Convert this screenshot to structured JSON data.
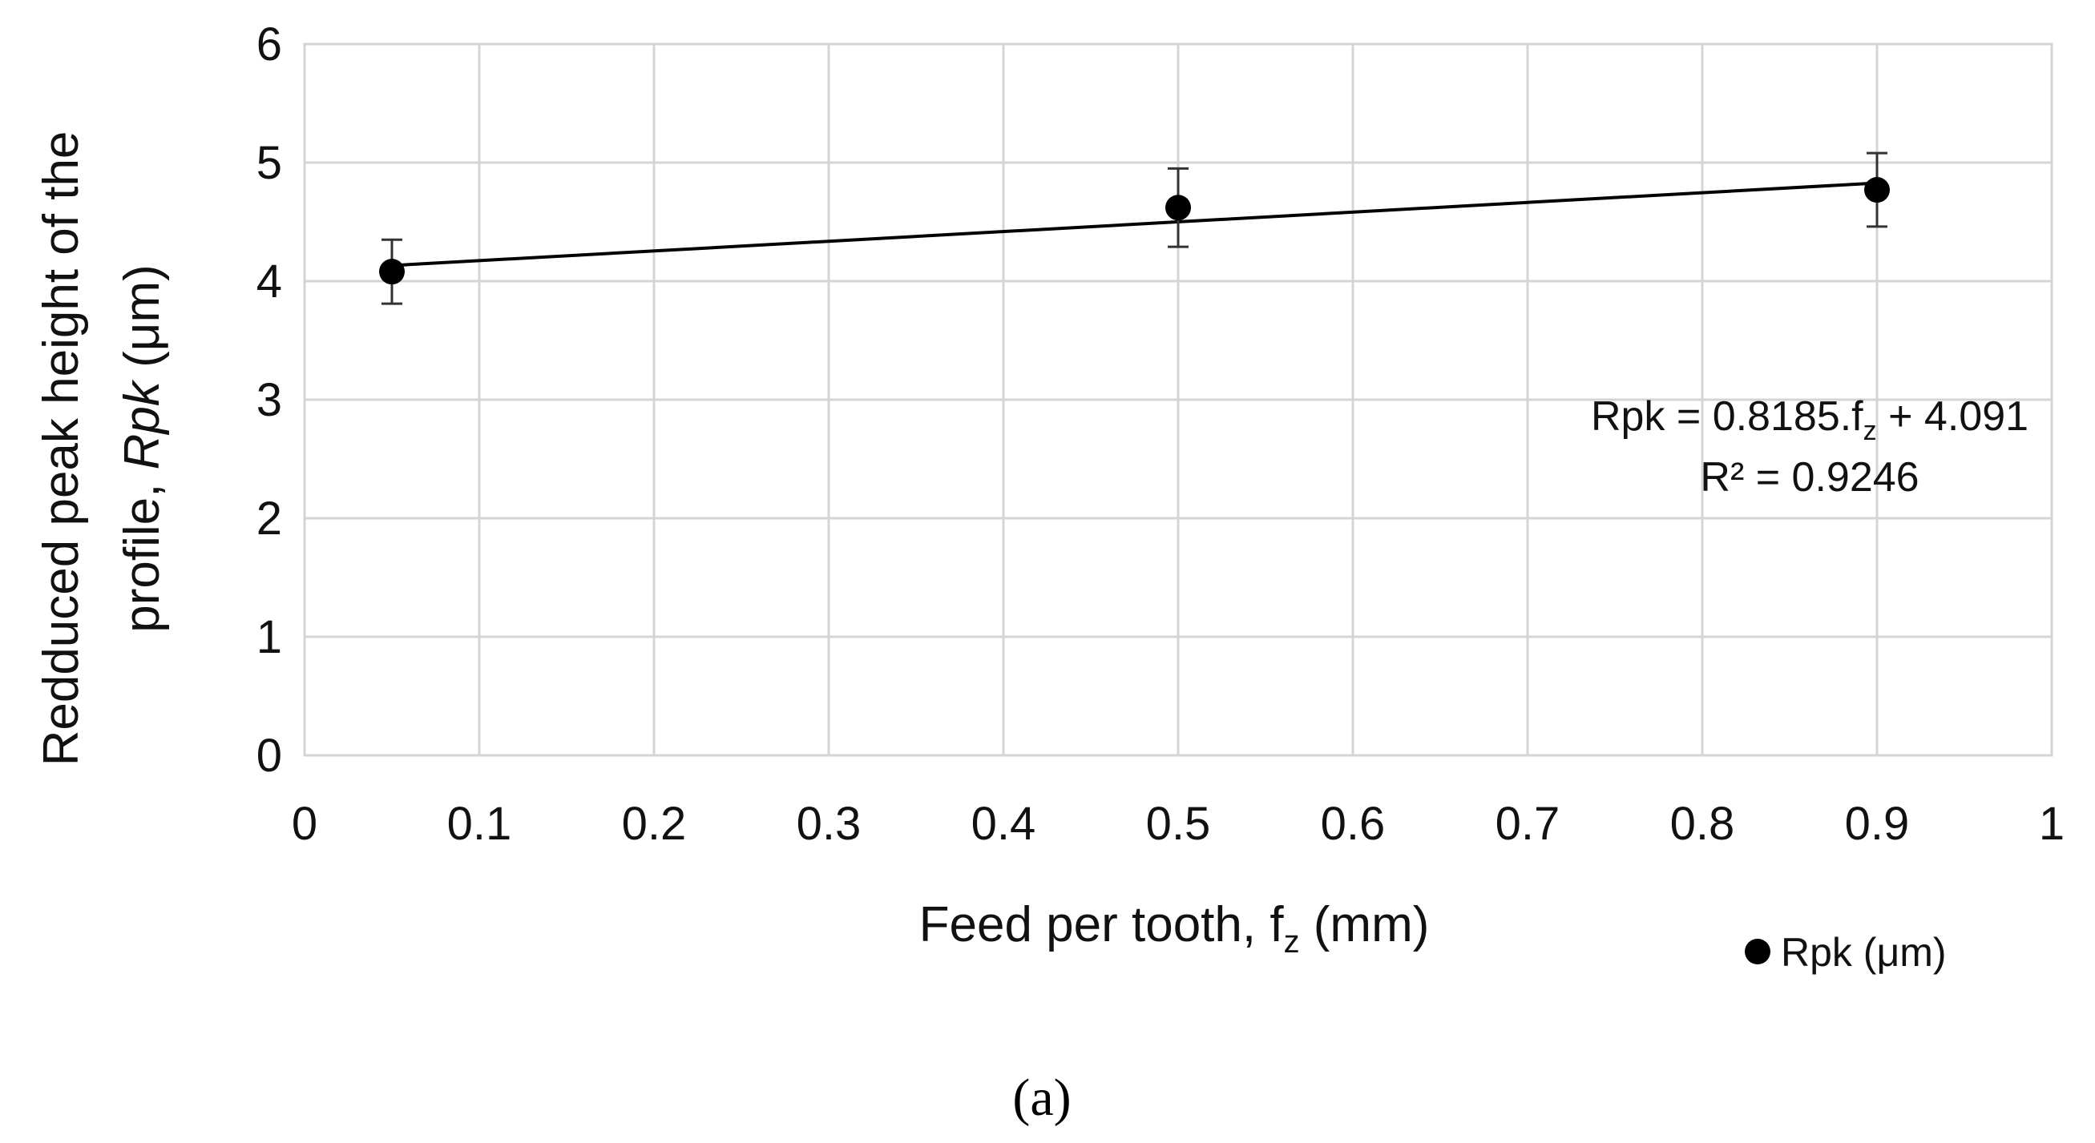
{
  "chart_data": {
    "type": "scatter",
    "x": [
      0.05,
      0.5,
      0.9
    ],
    "series": [
      {
        "name": "Rpk (μm)",
        "values": [
          4.08,
          4.62,
          4.77
        ],
        "error": [
          0.27,
          0.33,
          0.31
        ],
        "color": "#000000"
      }
    ],
    "trendline": {
      "type": "linear",
      "slope": 0.8185,
      "intercept": 4.091,
      "x_range": [
        0.05,
        0.9
      ],
      "color": "#000000"
    },
    "equation": {
      "main": "Rpk = 0.8185.f",
      "sub": "z",
      "rest": " + 4.091"
    },
    "r_squared": "R² = 0.9246",
    "xlim": [
      0,
      1
    ],
    "ylim": [
      0,
      6
    ],
    "x_ticks": [
      "0",
      "0.1",
      "0.2",
      "0.3",
      "0.4",
      "0.5",
      "0.6",
      "0.7",
      "0.8",
      "0.9",
      "1"
    ],
    "y_ticks": [
      "0",
      "1",
      "2",
      "3",
      "4",
      "5",
      "6"
    ],
    "xlabel": {
      "main": "Feed per tooth, f",
      "sub": "z",
      "rest": " (mm)"
    },
    "ylabel": {
      "line1": "Redduced peak height of the",
      "line2_plain": "profile, ",
      "line2_italic": "Rpk",
      "line2_rest": " (μm)"
    },
    "legend": {
      "label": "Rpk (μm)",
      "position": "bottom-right"
    },
    "grid": true
  },
  "caption": "(a)"
}
